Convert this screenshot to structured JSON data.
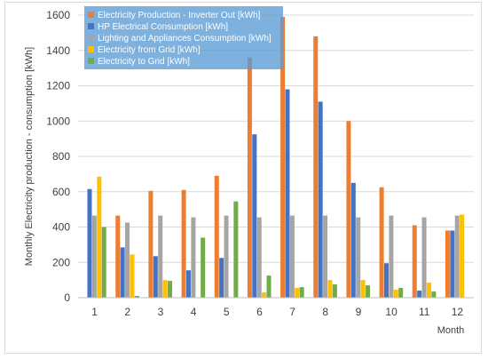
{
  "chart_data": {
    "type": "bar",
    "title": "",
    "xlabel": "Month",
    "ylabel": "Monthly Electricity production - consumption [kWh]",
    "categories": [
      "1",
      "2",
      "3",
      "4",
      "5",
      "6",
      "7",
      "8",
      "9",
      "10",
      "11",
      "12"
    ],
    "ylim": [
      0,
      1600
    ],
    "yticks": [
      0,
      200,
      400,
      600,
      800,
      1000,
      1200,
      1400,
      1600
    ],
    "grid": true,
    "legend_position": "top-left",
    "series": [
      {
        "name": "Electricity Production - Inverter Out [kWh]",
        "color": "#ed7d31",
        "values": [
          0,
          465,
          605,
          610,
          690,
          1360,
          1590,
          1480,
          1000,
          625,
          410,
          380
        ]
      },
      {
        "name": "HP Electrical Consumption [kWh]",
        "color": "#4472c4",
        "values": [
          615,
          285,
          235,
          155,
          225,
          925,
          1180,
          1110,
          650,
          195,
          40,
          380
        ]
      },
      {
        "name": "Lighting and Appliances Consumption [kWh]",
        "color": "#a5a5a5",
        "values": [
          465,
          425,
          465,
          455,
          465,
          455,
          465,
          465,
          455,
          465,
          455,
          465
        ]
      },
      {
        "name": "Electricity from Grid [kWh]",
        "color": "#ffc000",
        "values": [
          685,
          245,
          100,
          0,
          0,
          30,
          55,
          100,
          100,
          45,
          85,
          470
        ]
      },
      {
        "name": "Electricity to Grid [kWh]",
        "color": "#70ad47",
        "values": [
          400,
          10,
          95,
          340,
          545,
          125,
          60,
          75,
          70,
          55,
          35,
          0
        ]
      }
    ]
  }
}
